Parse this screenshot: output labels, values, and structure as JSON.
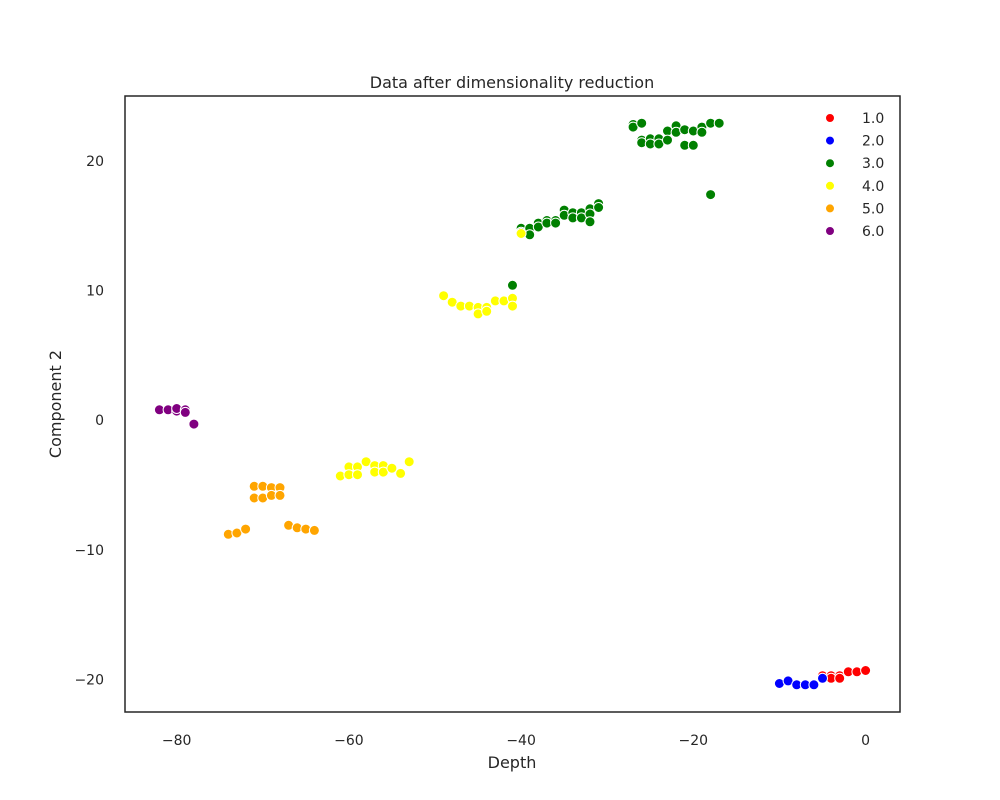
{
  "chart_data": {
    "type": "scatter",
    "title": "Data after dimensionality reduction",
    "xlabel": "Depth",
    "ylabel": "Component 2",
    "xlim": [
      -86,
      4
    ],
    "ylim": [
      -22.5,
      25
    ],
    "xticks": [
      -80,
      -60,
      -40,
      -20,
      0
    ],
    "yticks": [
      -20,
      -10,
      0,
      10,
      20
    ],
    "xtick_labels": [
      "−80",
      "−60",
      "−40",
      "−20",
      "0"
    ],
    "ytick_labels": [
      "−20",
      "−10",
      "0",
      "10",
      "20"
    ],
    "grid": false,
    "legend_position": "top-right",
    "series": [
      {
        "name": "1.0",
        "color": "#ff0000",
        "points": [
          [
            -5,
            -19.7
          ],
          [
            -4,
            -19.7
          ],
          [
            -3,
            -19.7
          ],
          [
            -4,
            -19.9
          ],
          [
            -3,
            -19.9
          ],
          [
            -2,
            -19.4
          ],
          [
            -1,
            -19.4
          ],
          [
            0,
            -19.3
          ]
        ]
      },
      {
        "name": "2.0",
        "color": "#0000ff",
        "points": [
          [
            -10,
            -20.3
          ],
          [
            -9,
            -20.1
          ],
          [
            -8,
            -20.4
          ],
          [
            -7,
            -20.4
          ],
          [
            -6,
            -20.4
          ],
          [
            -5,
            -19.9
          ]
        ]
      },
      {
        "name": "3.0",
        "color": "#008000",
        "points": [
          [
            -41,
            10.4
          ],
          [
            -40,
            14.8
          ],
          [
            -40,
            14.5
          ],
          [
            -39,
            14.8
          ],
          [
            -39,
            14.3
          ],
          [
            -38,
            15.2
          ],
          [
            -38,
            14.9
          ],
          [
            -37,
            15.4
          ],
          [
            -37,
            15.2
          ],
          [
            -36,
            15.4
          ],
          [
            -36,
            15.2
          ],
          [
            -35,
            16.2
          ],
          [
            -35,
            15.8
          ],
          [
            -34,
            16.0
          ],
          [
            -34,
            15.6
          ],
          [
            -33,
            16.0
          ],
          [
            -33,
            15.6
          ],
          [
            -32,
            16.3
          ],
          [
            -32,
            15.9
          ],
          [
            -32,
            15.3
          ],
          [
            -31,
            16.7
          ],
          [
            -31,
            16.4
          ],
          [
            -27,
            22.8
          ],
          [
            -27,
            22.6
          ],
          [
            -26,
            22.9
          ],
          [
            -26,
            21.6
          ],
          [
            -26,
            21.4
          ],
          [
            -25,
            21.7
          ],
          [
            -25,
            21.3
          ],
          [
            -24,
            21.7
          ],
          [
            -24,
            21.3
          ],
          [
            -23,
            22.3
          ],
          [
            -23,
            21.6
          ],
          [
            -22,
            22.7
          ],
          [
            -22,
            22.2
          ],
          [
            -21,
            22.4
          ],
          [
            -21,
            21.2
          ],
          [
            -20,
            22.3
          ],
          [
            -20,
            21.2
          ],
          [
            -19,
            22.6
          ],
          [
            -19,
            22.2
          ],
          [
            -18,
            22.9
          ],
          [
            -18,
            17.4
          ],
          [
            -17,
            22.9
          ]
        ]
      },
      {
        "name": "4.0",
        "color": "#ffff00",
        "points": [
          [
            -61,
            -4.3
          ],
          [
            -60,
            -3.6
          ],
          [
            -60,
            -4.2
          ],
          [
            -59,
            -3.6
          ],
          [
            -59,
            -4.2
          ],
          [
            -58,
            -3.2
          ],
          [
            -57,
            -3.5
          ],
          [
            -57,
            -4.0
          ],
          [
            -56,
            -3.5
          ],
          [
            -56,
            -4.0
          ],
          [
            -55,
            -3.7
          ],
          [
            -54,
            -4.1
          ],
          [
            -53,
            -3.2
          ],
          [
            -49,
            9.6
          ],
          [
            -48,
            9.1
          ],
          [
            -47,
            8.8
          ],
          [
            -46,
            8.8
          ],
          [
            -45,
            8.7
          ],
          [
            -45,
            8.2
          ],
          [
            -44,
            8.7
          ],
          [
            -44,
            8.4
          ],
          [
            -43,
            9.2
          ],
          [
            -42,
            9.2
          ],
          [
            -41,
            9.4
          ],
          [
            -41,
            8.8
          ],
          [
            -40,
            14.4
          ]
        ]
      },
      {
        "name": "5.0",
        "color": "#ffa500",
        "points": [
          [
            -74,
            -8.8
          ],
          [
            -73,
            -8.7
          ],
          [
            -72,
            -8.4
          ],
          [
            -71,
            -5.1
          ],
          [
            -71,
            -6.0
          ],
          [
            -70,
            -5.1
          ],
          [
            -70,
            -6.0
          ],
          [
            -69,
            -5.2
          ],
          [
            -69,
            -5.8
          ],
          [
            -68,
            -5.2
          ],
          [
            -68,
            -5.8
          ],
          [
            -67,
            -8.1
          ],
          [
            -66,
            -8.3
          ],
          [
            -65,
            -8.4
          ],
          [
            -64,
            -8.5
          ]
        ]
      },
      {
        "name": "6.0",
        "color": "#800080",
        "points": [
          [
            -82,
            0.8
          ],
          [
            -81,
            0.8
          ],
          [
            -80,
            0.7
          ],
          [
            -80,
            0.9
          ],
          [
            -79,
            0.8
          ],
          [
            -79,
            0.6
          ],
          [
            -78,
            -0.3
          ]
        ]
      }
    ]
  }
}
